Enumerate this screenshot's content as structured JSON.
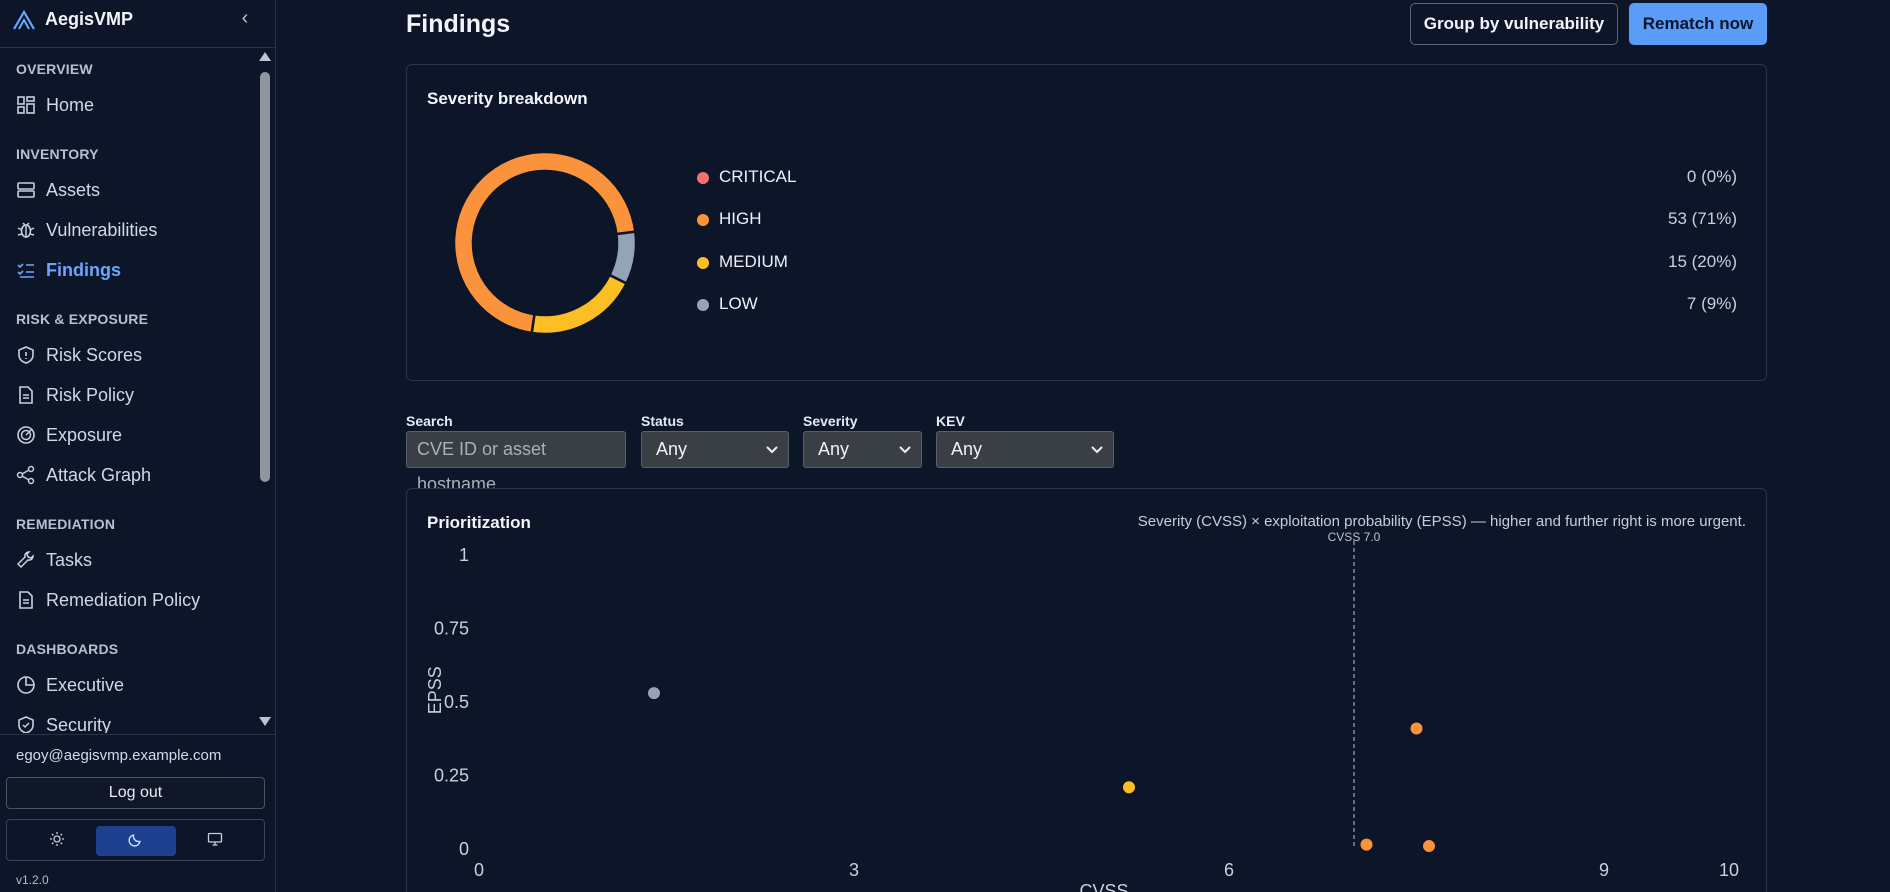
{
  "brand": {
    "name": "AegisVMP"
  },
  "nav": {
    "sections": [
      {
        "id": "overview",
        "label": "OVERVIEW"
      },
      {
        "id": "inventory",
        "label": "INVENTORY"
      },
      {
        "id": "risk",
        "label": "RISK & EXPOSURE"
      },
      {
        "id": "remediation",
        "label": "REMEDIATION"
      },
      {
        "id": "dashboards",
        "label": "DASHBOARDS"
      }
    ],
    "items": [
      {
        "label": "Home",
        "icon": "grid-icon"
      },
      {
        "label": "Assets",
        "icon": "server-icon"
      },
      {
        "label": "Vulnerabilities",
        "icon": "bug-icon"
      },
      {
        "label": "Findings",
        "icon": "list-check-icon",
        "active": true
      },
      {
        "label": "Risk Scores",
        "icon": "shield-icon"
      },
      {
        "label": "Risk Policy",
        "icon": "document-icon"
      },
      {
        "label": "Exposure",
        "icon": "radar-icon"
      },
      {
        "label": "Attack Graph",
        "icon": "share-nodes-icon"
      },
      {
        "label": "Tasks",
        "icon": "wrench-icon"
      },
      {
        "label": "Remediation Policy",
        "icon": "document-icon"
      },
      {
        "label": "Executive",
        "icon": "pie-chart-icon"
      },
      {
        "label": "Security",
        "icon": "shield-check-icon"
      }
    ]
  },
  "footer": {
    "email": "egoy@aegisvmp.example.com",
    "logout_label": "Log out",
    "theme_options": [
      "light",
      "dark",
      "system"
    ],
    "theme_active": "dark",
    "version": "v1.2.0"
  },
  "page": {
    "title": "Findings",
    "group_button": "Group by vulnerability",
    "rematch_button": "Rematch now"
  },
  "severity": {
    "title": "Severity breakdown",
    "colors": {
      "critical": "#f76f6f",
      "high": "#fb923c",
      "medium": "#fbbf24",
      "low": "#94a3b8"
    },
    "rows": [
      {
        "label": "CRITICAL",
        "value": "0 (0%)"
      },
      {
        "label": "HIGH",
        "value": "53 (71%)"
      },
      {
        "label": "MEDIUM",
        "value": "15 (20%)"
      },
      {
        "label": "LOW",
        "value": "7 (9%)"
      }
    ]
  },
  "filters": {
    "search_label": "Search",
    "search_placeholder": "CVE ID or asset hostname",
    "status_label": "Status",
    "status_value": "Any",
    "severity_label": "Severity",
    "severity_value": "Any",
    "kev_label": "KEV",
    "kev_value": "Any"
  },
  "prioritization": {
    "title": "Prioritization",
    "note": "Severity (CVSS) × exploitation probability (EPSS) — higher and further right is more urgent."
  },
  "chart_data": [
    {
      "type": "pie",
      "categories": [
        "CRITICAL",
        "HIGH",
        "MEDIUM",
        "LOW"
      ],
      "values": [
        0,
        53,
        15,
        7
      ]
    },
    {
      "type": "scatter",
      "xlabel": "CVSS",
      "ylabel": "EPSS",
      "xlim": [
        0,
        10
      ],
      "ylim": [
        0,
        1
      ],
      "xticks": [
        "0",
        "3",
        "6",
        "9",
        "10"
      ],
      "yticks": [
        "0",
        "0.25",
        "0.5",
        "0.75",
        "1"
      ],
      "threshold": {
        "x": 7.0,
        "label": "CVSS 7.0"
      },
      "points": [
        {
          "x": 1.4,
          "y": 0.53,
          "severity": "low"
        },
        {
          "x": 5.2,
          "y": 0.21,
          "severity": "medium"
        },
        {
          "x": 7.5,
          "y": 0.41,
          "severity": "high"
        },
        {
          "x": 7.1,
          "y": 0.015,
          "severity": "high"
        },
        {
          "x": 7.6,
          "y": 0.01,
          "severity": "high"
        }
      ]
    }
  ]
}
